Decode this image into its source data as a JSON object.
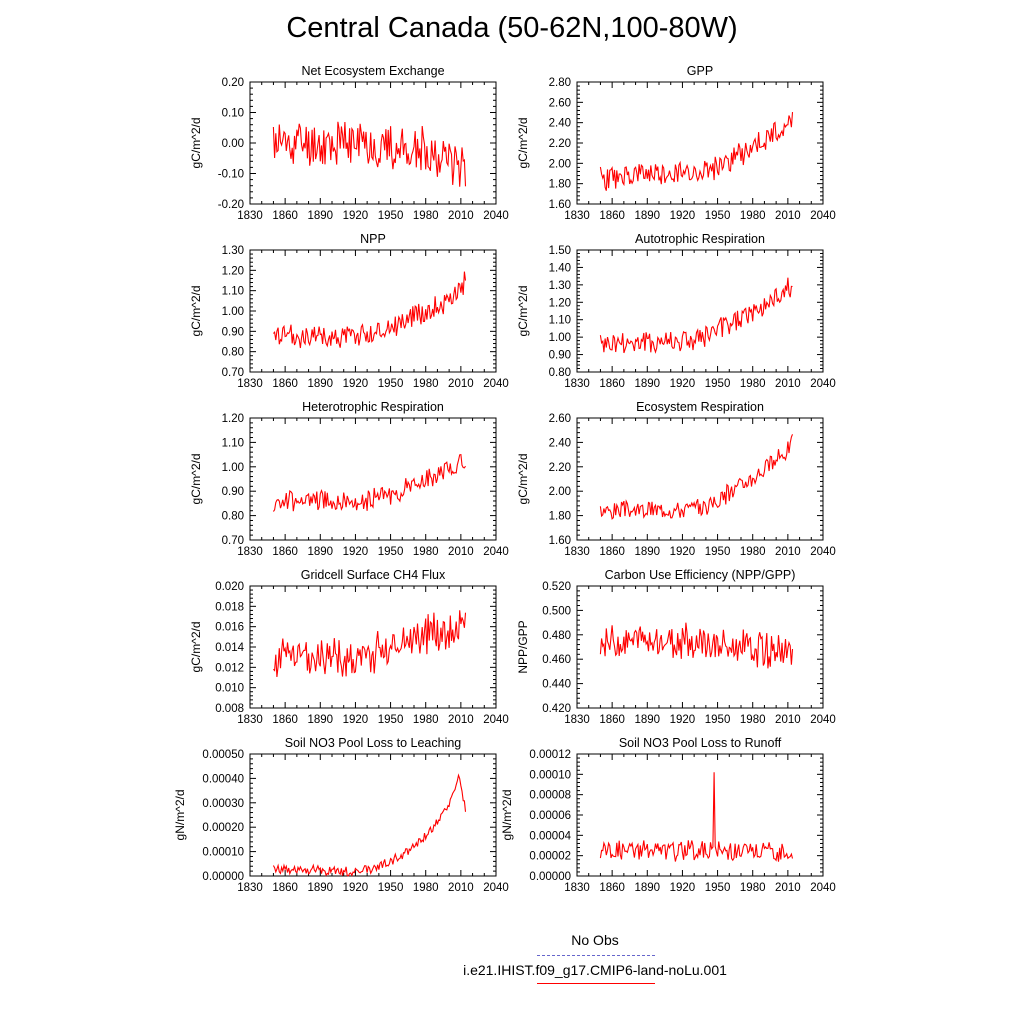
{
  "title": "Central Canada (50-62N,100-80W)",
  "legend": {
    "obs_label": "No Obs",
    "obs_color": "#6666cc",
    "model_label": "i.e21.IHIST.f09_g17.CMIP6-land-noLu.001",
    "model_color": "#ff0000"
  },
  "chart_data": [
    {
      "type": "line",
      "title": "Net Ecosystem Exchange",
      "ylabel": "gC/m^2/d",
      "xlim": [
        1830,
        2040
      ],
      "ylim": [
        -0.2,
        0.2
      ],
      "xticks": [
        "1830",
        "1860",
        "1890",
        "1920",
        "1950",
        "1980",
        "2010",
        "2040"
      ],
      "yticks": [
        "-0.20",
        "-0.10",
        "0.00",
        "0.10",
        "0.20"
      ],
      "series": [
        {
          "start_year": 1850,
          "trend": [
            [
              1850,
              0.0
            ],
            [
              1930,
              0.0
            ],
            [
              1960,
              -0.02
            ],
            [
              2014,
              -0.06
            ]
          ],
          "amp": 0.09,
          "seed": 11
        }
      ]
    },
    {
      "type": "line",
      "title": "GPP",
      "ylabel": "gC/m^2/d",
      "xlim": [
        1830,
        2040
      ],
      "ylim": [
        1.6,
        2.8
      ],
      "xticks": [
        "1830",
        "1860",
        "1890",
        "1920",
        "1950",
        "1980",
        "2010",
        "2040"
      ],
      "yticks": [
        "1.60",
        "1.80",
        "2.00",
        "2.20",
        "2.40",
        "2.60",
        "2.80"
      ],
      "series": [
        {
          "start_year": 1850,
          "trend": [
            [
              1850,
              1.85
            ],
            [
              1930,
              1.92
            ],
            [
              1950,
              1.96
            ],
            [
              2000,
              2.3
            ],
            [
              2014,
              2.45
            ]
          ],
          "amp": 0.14,
          "seed": 23
        }
      ]
    },
    {
      "type": "line",
      "title": "NPP",
      "ylabel": "gC/m^2/d",
      "xlim": [
        1830,
        2040
      ],
      "ylim": [
        0.7,
        1.3
      ],
      "xticks": [
        "1830",
        "1860",
        "1890",
        "1920",
        "1950",
        "1980",
        "2010",
        "2040"
      ],
      "yticks": [
        "0.70",
        "0.80",
        "0.90",
        "1.00",
        "1.10",
        "1.20",
        "1.30"
      ],
      "series": [
        {
          "start_year": 1850,
          "trend": [
            [
              1850,
              0.87
            ],
            [
              1930,
              0.88
            ],
            [
              1950,
              0.93
            ],
            [
              2000,
              1.05
            ],
            [
              2014,
              1.15
            ]
          ],
          "amp": 0.07,
          "seed": 37
        }
      ]
    },
    {
      "type": "line",
      "title": "Autotrophic Respiration",
      "ylabel": "gC/m^2/d",
      "xlim": [
        1830,
        2040
      ],
      "ylim": [
        0.8,
        1.5
      ],
      "xticks": [
        "1830",
        "1860",
        "1890",
        "1920",
        "1950",
        "1980",
        "2010",
        "2040"
      ],
      "yticks": [
        "0.80",
        "0.90",
        "1.00",
        "1.10",
        "1.20",
        "1.30",
        "1.40",
        "1.50"
      ],
      "series": [
        {
          "start_year": 1850,
          "trend": [
            [
              1850,
              0.96
            ],
            [
              1930,
              0.98
            ],
            [
              1950,
              1.03
            ],
            [
              2000,
              1.22
            ],
            [
              2014,
              1.3
            ]
          ],
          "amp": 0.08,
          "seed": 41
        }
      ]
    },
    {
      "type": "line",
      "title": "Heterotrophic Respiration",
      "ylabel": "gC/m^2/d",
      "xlim": [
        1830,
        2040
      ],
      "ylim": [
        0.7,
        1.2
      ],
      "xticks": [
        "1830",
        "1860",
        "1890",
        "1920",
        "1950",
        "1980",
        "2010",
        "2040"
      ],
      "yticks": [
        "0.70",
        "0.80",
        "0.90",
        "1.00",
        "1.10",
        "1.20"
      ],
      "series": [
        {
          "start_year": 1850,
          "trend": [
            [
              1850,
              0.86
            ],
            [
              1930,
              0.86
            ],
            [
              1960,
              0.9
            ],
            [
              2000,
              0.99
            ],
            [
              2014,
              1.03
            ]
          ],
          "amp": 0.05,
          "seed": 53
        }
      ]
    },
    {
      "type": "line",
      "title": "Ecosystem Respiration",
      "ylabel": "gC/m^2/d",
      "xlim": [
        1830,
        2040
      ],
      "ylim": [
        1.6,
        2.6
      ],
      "xticks": [
        "1830",
        "1860",
        "1890",
        "1920",
        "1950",
        "1980",
        "2010",
        "2040"
      ],
      "yticks": [
        "1.60",
        "1.80",
        "2.00",
        "2.20",
        "2.40",
        "2.60"
      ],
      "series": [
        {
          "start_year": 1850,
          "trend": [
            [
              1850,
              1.84
            ],
            [
              1935,
              1.86
            ],
            [
              1950,
              1.92
            ],
            [
              2000,
              2.25
            ],
            [
              2014,
              2.4
            ]
          ],
          "amp": 0.09,
          "seed": 67
        }
      ]
    },
    {
      "type": "line",
      "title": "Gridcell Surface CH4 Flux",
      "ylabel": "gC/m^2/d",
      "xlim": [
        1830,
        2040
      ],
      "ylim": [
        0.008,
        0.02
      ],
      "xticks": [
        "1830",
        "1860",
        "1890",
        "1920",
        "1950",
        "1980",
        "2010",
        "2040"
      ],
      "yticks": [
        "0.008",
        "0.010",
        "0.012",
        "0.014",
        "0.016",
        "0.018",
        "0.020"
      ],
      "series": [
        {
          "start_year": 1850,
          "trend": [
            [
              1850,
              0.013
            ],
            [
              1930,
              0.013
            ],
            [
              1960,
              0.0148
            ],
            [
              2014,
              0.0162
            ]
          ],
          "amp": 0.0022,
          "seed": 71
        }
      ]
    },
    {
      "type": "line",
      "title": "Carbon Use Efficiency (NPP/GPP)",
      "ylabel": "NPP/GPP",
      "xlim": [
        1830,
        2040
      ],
      "ylim": [
        0.42,
        0.52
      ],
      "xticks": [
        "1830",
        "1860",
        "1890",
        "1920",
        "1950",
        "1980",
        "2010",
        "2040"
      ],
      "yticks": [
        "0.420",
        "0.440",
        "0.460",
        "0.480",
        "0.500",
        "0.520"
      ],
      "series": [
        {
          "start_year": 1850,
          "trend": [
            [
              1850,
              0.475
            ],
            [
              1930,
              0.475
            ],
            [
              1960,
              0.47
            ],
            [
              2014,
              0.466
            ]
          ],
          "amp": 0.016,
          "seed": 83
        }
      ]
    },
    {
      "type": "line",
      "title": "Soil NO3 Pool Loss to Leaching",
      "ylabel": "gN/m^2/d",
      "xlim": [
        1830,
        2040
      ],
      "ylim": [
        0.0,
        0.0005
      ],
      "xticks": [
        "1830",
        "1860",
        "1890",
        "1920",
        "1950",
        "1980",
        "2010",
        "2040"
      ],
      "yticks": [
        "0.00000",
        "0.00010",
        "0.00020",
        "0.00030",
        "0.00040",
        "0.00050"
      ],
      "series": [
        {
          "start_year": 1850,
          "trend": [
            [
              1850,
              3e-05
            ],
            [
              1920,
              2e-05
            ],
            [
              1935,
              3e-05
            ],
            [
              1960,
              8e-05
            ],
            [
              1980,
              0.00016
            ],
            [
              2000,
              0.00028
            ],
            [
              2008,
              0.00042
            ],
            [
              2014,
              0.00027
            ]
          ],
          "amp": 2.5e-05,
          "seed": 97
        }
      ]
    },
    {
      "type": "line",
      "title": "Soil NO3 Pool Loss to Runoff",
      "ylabel": "gN/m^2/d",
      "xlim": [
        1830,
        2040
      ],
      "ylim": [
        0.0,
        0.00012
      ],
      "xticks": [
        "1830",
        "1860",
        "1890",
        "1920",
        "1950",
        "1980",
        "2010",
        "2040"
      ],
      "yticks": [
        "0.00000",
        "0.00002",
        "0.00004",
        "0.00006",
        "0.00008",
        "0.00010",
        "0.00012"
      ],
      "series": [
        {
          "start_year": 1850,
          "trend": [
            [
              1850,
              2.6e-05
            ],
            [
              2014,
              2.4e-05
            ]
          ],
          "amp": 1.2e-05,
          "seed": 101,
          "spike": [
            1947,
            0.000102
          ]
        }
      ]
    }
  ]
}
